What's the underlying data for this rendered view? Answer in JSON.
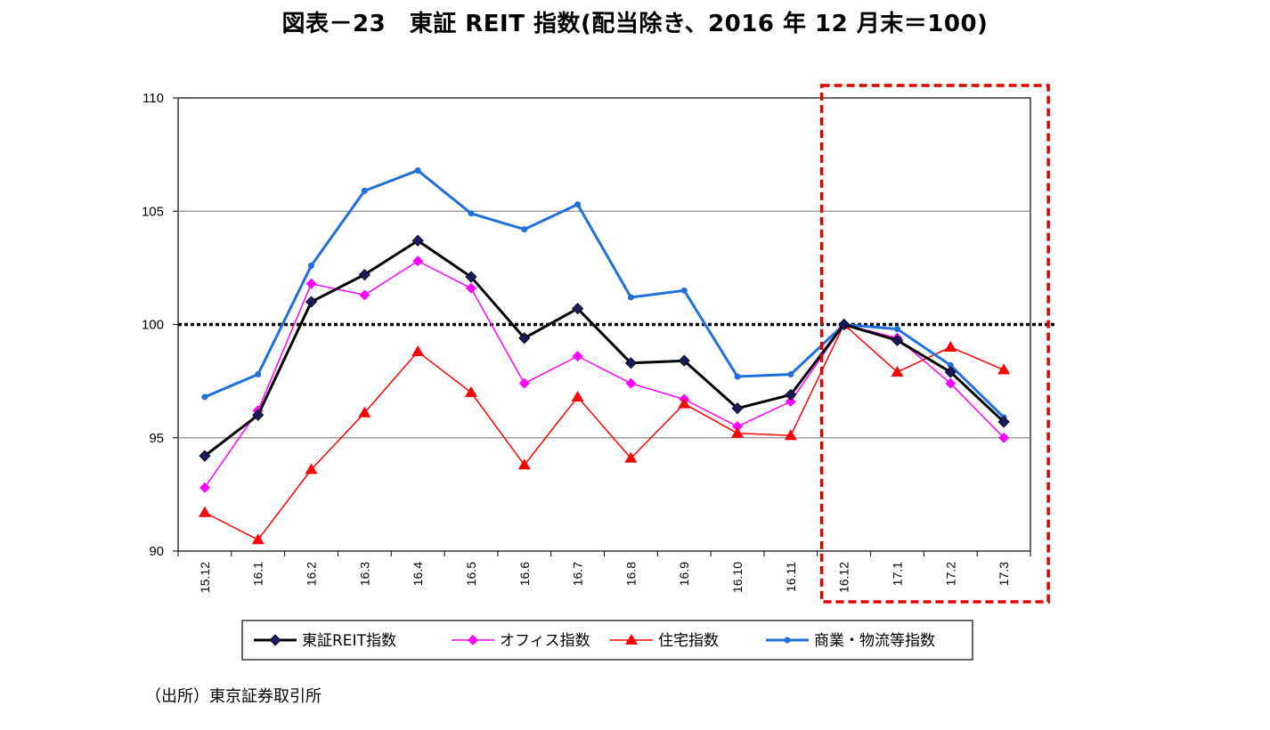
{
  "title": "図表－23　東証 REIT 指数(配当除き、2016 年 12 月末＝100)",
  "source": "（出所）東京証券取引所",
  "chart_data": {
    "type": "line",
    "categories": [
      "15.12",
      "16.1",
      "16.2",
      "16.3",
      "16.4",
      "16.5",
      "16.6",
      "16.7",
      "16.8",
      "16.9",
      "16.10",
      "16.11",
      "16.12",
      "17.1",
      "17.2",
      "17.3"
    ],
    "ylim": [
      90,
      110
    ],
    "yticks": [
      90,
      95,
      100,
      105,
      110
    ],
    "grid": true,
    "reference_line": 100,
    "highlight_categories": [
      "16.12",
      "17.3"
    ],
    "legend_position": "bottom",
    "series": [
      {
        "name": "東証REIT指数",
        "color": "#000000",
        "marker": "diamond-dark",
        "values": [
          94.2,
          96.0,
          101.0,
          102.2,
          103.7,
          102.1,
          99.4,
          100.7,
          98.3,
          98.4,
          96.3,
          96.9,
          100.0,
          99.3,
          97.9,
          95.7
        ]
      },
      {
        "name": "オフィス指数",
        "color": "#ff00ff",
        "marker": "diamond",
        "values": [
          92.8,
          96.2,
          101.8,
          101.3,
          102.8,
          101.6,
          97.4,
          98.6,
          97.4,
          96.7,
          95.5,
          96.6,
          100.0,
          99.4,
          97.4,
          95.0
        ]
      },
      {
        "name": "住宅指数",
        "color": "#ff0000",
        "marker": "triangle",
        "values": [
          91.7,
          90.5,
          93.6,
          96.1,
          98.8,
          97.0,
          93.8,
          96.8,
          94.1,
          96.5,
          95.2,
          95.1,
          100.0,
          97.9,
          99.0,
          98.0
        ]
      },
      {
        "name": "商業・物流等指数",
        "color": "#1f6fdc",
        "marker": "circle",
        "values": [
          96.8,
          97.8,
          102.6,
          105.9,
          106.8,
          104.9,
          104.2,
          105.3,
          101.2,
          101.5,
          97.7,
          97.8,
          100.0,
          99.8,
          98.2,
          95.9
        ]
      }
    ]
  }
}
